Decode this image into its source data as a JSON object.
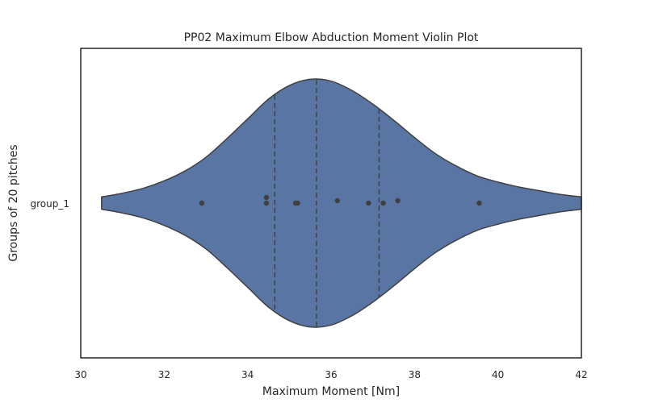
{
  "chart_data": {
    "type": "violin",
    "title": "PP02 Maximum Elbow Abduction Moment Violin Plot",
    "xlabel": "Maximum Moment [Nm]",
    "ylabel": "Groups of 20 pitches",
    "xlim": [
      30,
      42
    ],
    "xticks": [
      "30",
      "32",
      "34",
      "36",
      "38",
      "40",
      "42"
    ],
    "categories": [
      "group_1"
    ],
    "grid": false,
    "colors": {
      "violin_fill": "#5975a4",
      "outline": "#404040",
      "points": "#404040"
    },
    "violins": [
      {
        "category": "group_1",
        "range": [
          30.5,
          42.0
        ],
        "quartiles": {
          "q1": 34.65,
          "median": 35.65,
          "q3": 37.15
        },
        "points": [
          32.9,
          34.45,
          34.45,
          35.15,
          35.2,
          36.15,
          36.9,
          37.25,
          37.6,
          39.55
        ],
        "density": [
          [
            30.5,
            0.05
          ],
          [
            31.0,
            0.08
          ],
          [
            31.5,
            0.12
          ],
          [
            32.0,
            0.18
          ],
          [
            32.5,
            0.26
          ],
          [
            33.0,
            0.37
          ],
          [
            33.5,
            0.52
          ],
          [
            34.0,
            0.68
          ],
          [
            34.5,
            0.84
          ],
          [
            35.0,
            0.95
          ],
          [
            35.5,
            1.0
          ],
          [
            36.0,
            0.985
          ],
          [
            36.5,
            0.91
          ],
          [
            37.0,
            0.8
          ],
          [
            37.5,
            0.67
          ],
          [
            38.0,
            0.53
          ],
          [
            38.5,
            0.4
          ],
          [
            39.0,
            0.3
          ],
          [
            39.5,
            0.22
          ],
          [
            40.0,
            0.17
          ],
          [
            40.5,
            0.13
          ],
          [
            41.0,
            0.1
          ],
          [
            41.5,
            0.07
          ],
          [
            42.0,
            0.05
          ]
        ]
      }
    ]
  }
}
